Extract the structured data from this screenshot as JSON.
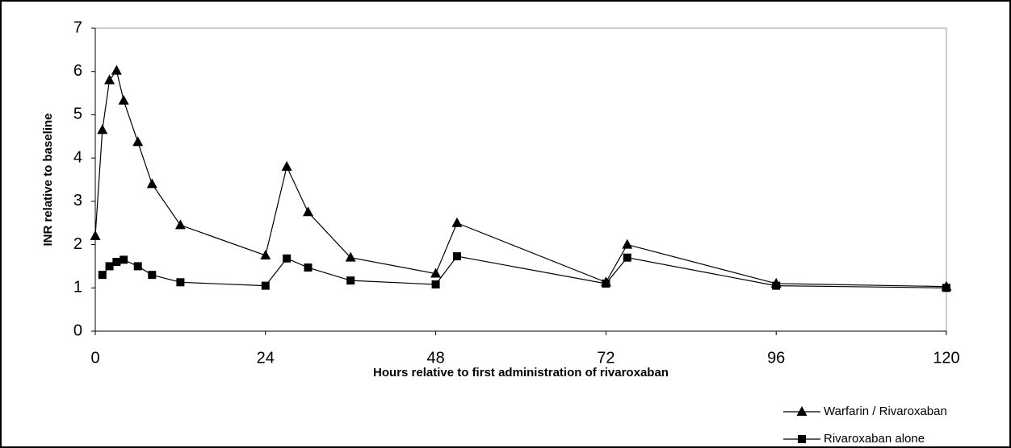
{
  "chart_data": {
    "type": "line",
    "x_label": "Hours relative to first administration of rivaroxaban",
    "y_label": "INR relative to baseline",
    "x": [
      0,
      1,
      2,
      3,
      4,
      6,
      8,
      12,
      24,
      27,
      30,
      36,
      48,
      51,
      72,
      75,
      96,
      120
    ],
    "series": [
      {
        "name": "Warfarin / Rivaroxaban",
        "color": "#000000",
        "marker": "triangle",
        "values": [
          2.2,
          4.65,
          5.8,
          6.02,
          5.33,
          4.37,
          3.4,
          2.45,
          1.75,
          3.8,
          2.75,
          1.7,
          1.33,
          2.5,
          1.13,
          2.0,
          1.1,
          1.03
        ]
      },
      {
        "name": "Rivaroxaban alone",
        "color": "#000000",
        "marker": "square",
        "values": [
          null,
          1.3,
          1.5,
          1.6,
          1.65,
          1.5,
          1.3,
          1.13,
          1.05,
          1.68,
          1.47,
          1.17,
          1.08,
          1.73,
          1.1,
          1.7,
          1.05,
          1.0
        ]
      }
    ],
    "xlim": [
      0,
      120
    ],
    "xticks": [
      0,
      24,
      48,
      72,
      96,
      120
    ],
    "ylim": [
      0,
      7
    ],
    "yticks": [
      0,
      1,
      2,
      3,
      4,
      5,
      6,
      7
    ],
    "grid": false,
    "legend": "bottom-right"
  }
}
